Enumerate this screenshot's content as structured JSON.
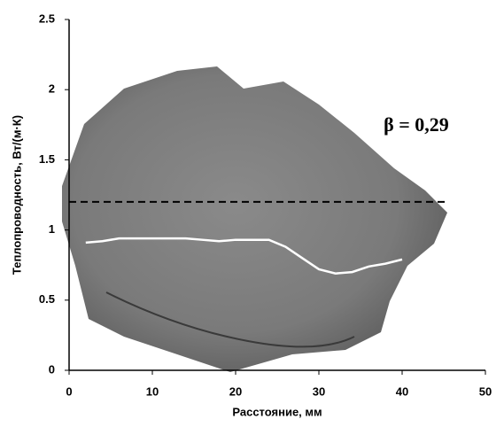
{
  "chart_data": {
    "type": "line",
    "x_label": "Расстояние, мм",
    "y_label": "Теплопроводность, Вт/(м·К)",
    "annotation": "β = 0,29",
    "x": [
      2,
      4,
      6,
      8,
      10,
      12,
      14,
      16,
      18,
      20,
      22,
      24,
      26,
      28,
      30,
      32,
      34,
      36,
      38,
      40
    ],
    "series": [
      {
        "color": "#ffffff",
        "values": [
          0.91,
          0.92,
          0.94,
          0.94,
          0.94,
          0.94,
          0.94,
          0.93,
          0.92,
          0.93,
          0.93,
          0.93,
          0.88,
          0.8,
          0.72,
          0.69,
          0.7,
          0.74,
          0.76,
          0.79
        ]
      }
    ],
    "reference_line": {
      "value": 1.2,
      "x": [
        0,
        45.5
      ],
      "color": "#000000"
    },
    "xlim": [
      0,
      50
    ],
    "xticks": [
      0,
      10,
      20,
      30,
      40,
      50
    ],
    "ylim": [
      0,
      2.5
    ],
    "yticks": [
      0,
      0.5,
      1,
      1.5,
      2,
      2.5
    ]
  }
}
